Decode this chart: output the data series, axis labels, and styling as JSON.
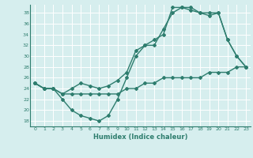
{
  "xlabel": "Humidex (Indice chaleur)",
  "xlim": [
    -0.5,
    23.5
  ],
  "ylim": [
    17,
    39.5
  ],
  "yticks": [
    18,
    20,
    22,
    24,
    26,
    28,
    30,
    32,
    34,
    36,
    38
  ],
  "xticks": [
    0,
    1,
    2,
    3,
    4,
    5,
    6,
    7,
    8,
    9,
    10,
    11,
    12,
    13,
    14,
    15,
    16,
    17,
    18,
    19,
    20,
    21,
    22,
    23
  ],
  "line1_x": [
    0,
    1,
    2,
    3,
    4,
    5,
    6,
    7,
    8,
    9,
    10,
    11,
    12,
    13,
    14,
    15,
    16,
    17,
    18,
    19,
    20,
    21,
    22,
    23
  ],
  "line1_y": [
    25,
    24,
    24,
    22,
    20,
    19,
    18.5,
    18,
    19,
    22,
    26,
    30,
    32,
    32,
    35,
    38,
    39,
    39,
    38,
    37.5,
    38,
    33,
    30,
    28
  ],
  "line2_x": [
    0,
    1,
    2,
    3,
    4,
    5,
    6,
    7,
    8,
    9,
    10,
    11,
    12,
    13,
    14,
    15,
    16,
    17,
    18,
    19,
    20,
    21,
    22,
    23
  ],
  "line2_y": [
    25,
    24,
    24,
    23,
    24,
    25,
    24.5,
    24,
    24.5,
    25.5,
    27,
    31,
    32,
    33,
    34,
    39,
    39,
    38.5,
    38,
    38,
    38,
    33,
    30,
    28
  ],
  "line3_x": [
    0,
    1,
    2,
    3,
    4,
    5,
    6,
    7,
    8,
    9,
    10,
    11,
    12,
    13,
    14,
    15,
    16,
    17,
    18,
    19,
    20,
    21,
    22,
    23
  ],
  "line3_y": [
    25,
    24,
    24,
    23,
    23,
    23,
    23,
    23,
    23,
    23,
    24,
    24,
    25,
    25,
    26,
    26,
    26,
    26,
    26,
    27,
    27,
    27,
    28,
    28
  ],
  "line_color": "#2e7d6e",
  "bg_color": "#d6eeee",
  "grid_color": "#ffffff",
  "marker": "D",
  "marker_size": 2,
  "line_width": 1.0
}
